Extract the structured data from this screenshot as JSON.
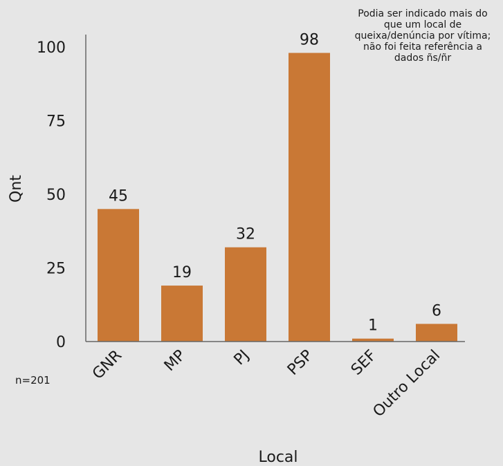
{
  "chart_data": {
    "type": "bar",
    "categories": [
      "GNR",
      "MP",
      "PJ",
      "PSP",
      "SEF",
      "Outro Local"
    ],
    "values": [
      45,
      19,
      32,
      98,
      1,
      6
    ],
    "title": "",
    "xlabel": "Local",
    "ylabel": "Qnt",
    "ylim": [
      0,
      100
    ],
    "yticks": [
      0,
      25,
      50,
      75,
      100
    ],
    "grid": false,
    "bar_color": "#c97835",
    "axis_color": "#666666",
    "note": [
      "Podia ser indicado mais do",
      "que um local de",
      "queixa/denúncia por vítima;",
      "não foi feita referência a",
      "dados ñs/ñr"
    ],
    "sample_size": "n=201"
  }
}
